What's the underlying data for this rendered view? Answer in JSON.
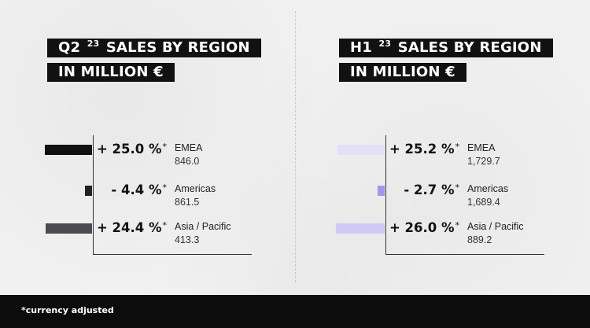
{
  "panels": [
    {
      "title_line1_prefix": "Q2",
      "title_sup": "23",
      "title_line1_suffix": "SALES BY REGION",
      "title_line2": "IN MILLION €"
    },
    {
      "title_line1_prefix": "H1",
      "title_sup": "23",
      "title_line1_suffix": "SALES BY REGION",
      "title_line2": "IN MILLION €"
    }
  ],
  "chart_data": [
    {
      "type": "bar",
      "orientation": "horizontal",
      "categories": [
        "EMEA",
        "Americas",
        "Asia / Pacific"
      ],
      "values": [
        25.0,
        -4.4,
        24.4
      ],
      "value_labels": [
        "+ 25.0 %",
        "- 4.4 %",
        "+ 24.4 %"
      ],
      "label_marker": "*",
      "sales_labels": [
        "846.0",
        "861.5",
        "413.3"
      ],
      "colors": [
        "#111111",
        "#222222",
        "#4e4a52"
      ]
    },
    {
      "type": "bar",
      "orientation": "horizontal",
      "categories": [
        "EMEA",
        "Americas",
        "Asia / Pacific"
      ],
      "values": [
        25.2,
        -2.7,
        26.0
      ],
      "value_labels": [
        "+ 25.2 %",
        "- 2.7 %",
        "+ 26.0 %"
      ],
      "label_marker": "*",
      "sales_labels": [
        "1,729.7",
        "1,689.4",
        "889.2"
      ],
      "colors": [
        "#e4e1f7",
        "#a397ea",
        "#cfc9f5"
      ]
    }
  ],
  "footnote": "*currency adjusted"
}
